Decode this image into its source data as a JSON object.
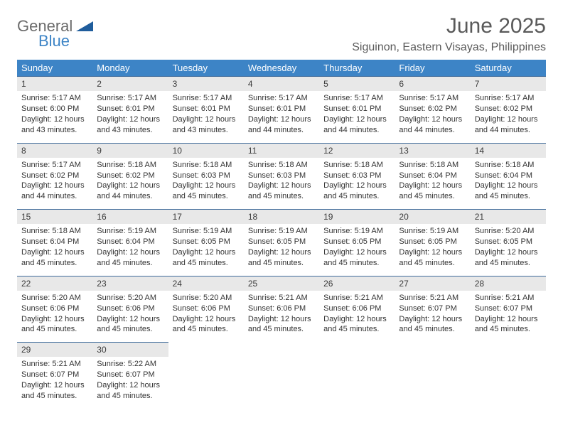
{
  "logo": {
    "word1": "General",
    "word2": "Blue",
    "shape_color": "#1f5d9c",
    "word1_color": "#6b6b6b",
    "word2_color": "#3d84c6"
  },
  "header": {
    "month_title": "June 2025",
    "location": "Siguinon, Eastern Visayas, Philippines",
    "title_color": "#5a5a5a"
  },
  "calendar": {
    "header_bg": "#3d84c6",
    "header_text_color": "#ffffff",
    "daynum_bg": "#e8e8e8",
    "daynum_border": "#3d6a9a",
    "text_color": "#333333",
    "columns": [
      "Sunday",
      "Monday",
      "Tuesday",
      "Wednesday",
      "Thursday",
      "Friday",
      "Saturday"
    ],
    "weeks": [
      [
        {
          "day": "1",
          "sunrise": "Sunrise: 5:17 AM",
          "sunset": "Sunset: 6:00 PM",
          "daylight1": "Daylight: 12 hours",
          "daylight2": "and 43 minutes."
        },
        {
          "day": "2",
          "sunrise": "Sunrise: 5:17 AM",
          "sunset": "Sunset: 6:01 PM",
          "daylight1": "Daylight: 12 hours",
          "daylight2": "and 43 minutes."
        },
        {
          "day": "3",
          "sunrise": "Sunrise: 5:17 AM",
          "sunset": "Sunset: 6:01 PM",
          "daylight1": "Daylight: 12 hours",
          "daylight2": "and 43 minutes."
        },
        {
          "day": "4",
          "sunrise": "Sunrise: 5:17 AM",
          "sunset": "Sunset: 6:01 PM",
          "daylight1": "Daylight: 12 hours",
          "daylight2": "and 44 minutes."
        },
        {
          "day": "5",
          "sunrise": "Sunrise: 5:17 AM",
          "sunset": "Sunset: 6:01 PM",
          "daylight1": "Daylight: 12 hours",
          "daylight2": "and 44 minutes."
        },
        {
          "day": "6",
          "sunrise": "Sunrise: 5:17 AM",
          "sunset": "Sunset: 6:02 PM",
          "daylight1": "Daylight: 12 hours",
          "daylight2": "and 44 minutes."
        },
        {
          "day": "7",
          "sunrise": "Sunrise: 5:17 AM",
          "sunset": "Sunset: 6:02 PM",
          "daylight1": "Daylight: 12 hours",
          "daylight2": "and 44 minutes."
        }
      ],
      [
        {
          "day": "8",
          "sunrise": "Sunrise: 5:17 AM",
          "sunset": "Sunset: 6:02 PM",
          "daylight1": "Daylight: 12 hours",
          "daylight2": "and 44 minutes."
        },
        {
          "day": "9",
          "sunrise": "Sunrise: 5:18 AM",
          "sunset": "Sunset: 6:02 PM",
          "daylight1": "Daylight: 12 hours",
          "daylight2": "and 44 minutes."
        },
        {
          "day": "10",
          "sunrise": "Sunrise: 5:18 AM",
          "sunset": "Sunset: 6:03 PM",
          "daylight1": "Daylight: 12 hours",
          "daylight2": "and 45 minutes."
        },
        {
          "day": "11",
          "sunrise": "Sunrise: 5:18 AM",
          "sunset": "Sunset: 6:03 PM",
          "daylight1": "Daylight: 12 hours",
          "daylight2": "and 45 minutes."
        },
        {
          "day": "12",
          "sunrise": "Sunrise: 5:18 AM",
          "sunset": "Sunset: 6:03 PM",
          "daylight1": "Daylight: 12 hours",
          "daylight2": "and 45 minutes."
        },
        {
          "day": "13",
          "sunrise": "Sunrise: 5:18 AM",
          "sunset": "Sunset: 6:04 PM",
          "daylight1": "Daylight: 12 hours",
          "daylight2": "and 45 minutes."
        },
        {
          "day": "14",
          "sunrise": "Sunrise: 5:18 AM",
          "sunset": "Sunset: 6:04 PM",
          "daylight1": "Daylight: 12 hours",
          "daylight2": "and 45 minutes."
        }
      ],
      [
        {
          "day": "15",
          "sunrise": "Sunrise: 5:18 AM",
          "sunset": "Sunset: 6:04 PM",
          "daylight1": "Daylight: 12 hours",
          "daylight2": "and 45 minutes."
        },
        {
          "day": "16",
          "sunrise": "Sunrise: 5:19 AM",
          "sunset": "Sunset: 6:04 PM",
          "daylight1": "Daylight: 12 hours",
          "daylight2": "and 45 minutes."
        },
        {
          "day": "17",
          "sunrise": "Sunrise: 5:19 AM",
          "sunset": "Sunset: 6:05 PM",
          "daylight1": "Daylight: 12 hours",
          "daylight2": "and 45 minutes."
        },
        {
          "day": "18",
          "sunrise": "Sunrise: 5:19 AM",
          "sunset": "Sunset: 6:05 PM",
          "daylight1": "Daylight: 12 hours",
          "daylight2": "and 45 minutes."
        },
        {
          "day": "19",
          "sunrise": "Sunrise: 5:19 AM",
          "sunset": "Sunset: 6:05 PM",
          "daylight1": "Daylight: 12 hours",
          "daylight2": "and 45 minutes."
        },
        {
          "day": "20",
          "sunrise": "Sunrise: 5:19 AM",
          "sunset": "Sunset: 6:05 PM",
          "daylight1": "Daylight: 12 hours",
          "daylight2": "and 45 minutes."
        },
        {
          "day": "21",
          "sunrise": "Sunrise: 5:20 AM",
          "sunset": "Sunset: 6:05 PM",
          "daylight1": "Daylight: 12 hours",
          "daylight2": "and 45 minutes."
        }
      ],
      [
        {
          "day": "22",
          "sunrise": "Sunrise: 5:20 AM",
          "sunset": "Sunset: 6:06 PM",
          "daylight1": "Daylight: 12 hours",
          "daylight2": "and 45 minutes."
        },
        {
          "day": "23",
          "sunrise": "Sunrise: 5:20 AM",
          "sunset": "Sunset: 6:06 PM",
          "daylight1": "Daylight: 12 hours",
          "daylight2": "and 45 minutes."
        },
        {
          "day": "24",
          "sunrise": "Sunrise: 5:20 AM",
          "sunset": "Sunset: 6:06 PM",
          "daylight1": "Daylight: 12 hours",
          "daylight2": "and 45 minutes."
        },
        {
          "day": "25",
          "sunrise": "Sunrise: 5:21 AM",
          "sunset": "Sunset: 6:06 PM",
          "daylight1": "Daylight: 12 hours",
          "daylight2": "and 45 minutes."
        },
        {
          "day": "26",
          "sunrise": "Sunrise: 5:21 AM",
          "sunset": "Sunset: 6:06 PM",
          "daylight1": "Daylight: 12 hours",
          "daylight2": "and 45 minutes."
        },
        {
          "day": "27",
          "sunrise": "Sunrise: 5:21 AM",
          "sunset": "Sunset: 6:07 PM",
          "daylight1": "Daylight: 12 hours",
          "daylight2": "and 45 minutes."
        },
        {
          "day": "28",
          "sunrise": "Sunrise: 5:21 AM",
          "sunset": "Sunset: 6:07 PM",
          "daylight1": "Daylight: 12 hours",
          "daylight2": "and 45 minutes."
        }
      ],
      [
        {
          "day": "29",
          "sunrise": "Sunrise: 5:21 AM",
          "sunset": "Sunset: 6:07 PM",
          "daylight1": "Daylight: 12 hours",
          "daylight2": "and 45 minutes."
        },
        {
          "day": "30",
          "sunrise": "Sunrise: 5:22 AM",
          "sunset": "Sunset: 6:07 PM",
          "daylight1": "Daylight: 12 hours",
          "daylight2": "and 45 minutes."
        },
        null,
        null,
        null,
        null,
        null
      ]
    ]
  }
}
